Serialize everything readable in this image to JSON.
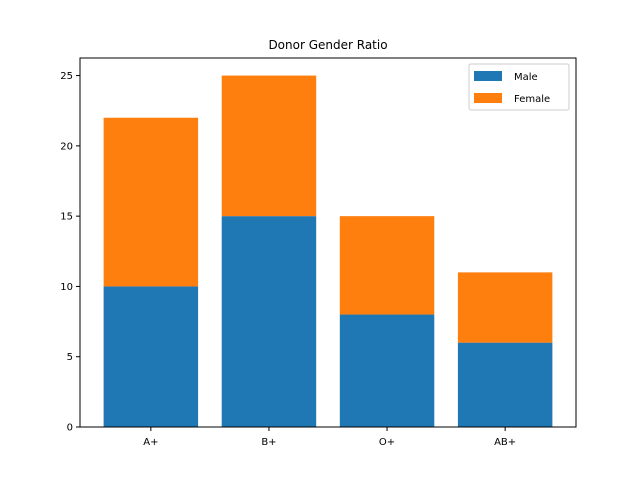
{
  "chart_data": {
    "type": "bar",
    "stacked": true,
    "title": "Donor Gender Ratio",
    "xlabel": "",
    "ylabel": "",
    "categories": [
      "A+",
      "B+",
      "O+",
      "AB+"
    ],
    "series": [
      {
        "name": "Male",
        "values": [
          10,
          15,
          8,
          6
        ],
        "color": "#1f77b4"
      },
      {
        "name": "Female",
        "values": [
          12,
          10,
          7,
          5
        ],
        "color": "#ff7f0e"
      }
    ],
    "ylim": [
      0,
      26.25
    ],
    "yticks": [
      0,
      5,
      10,
      15,
      20,
      25
    ],
    "grid": false,
    "legend_position": "top-right"
  }
}
